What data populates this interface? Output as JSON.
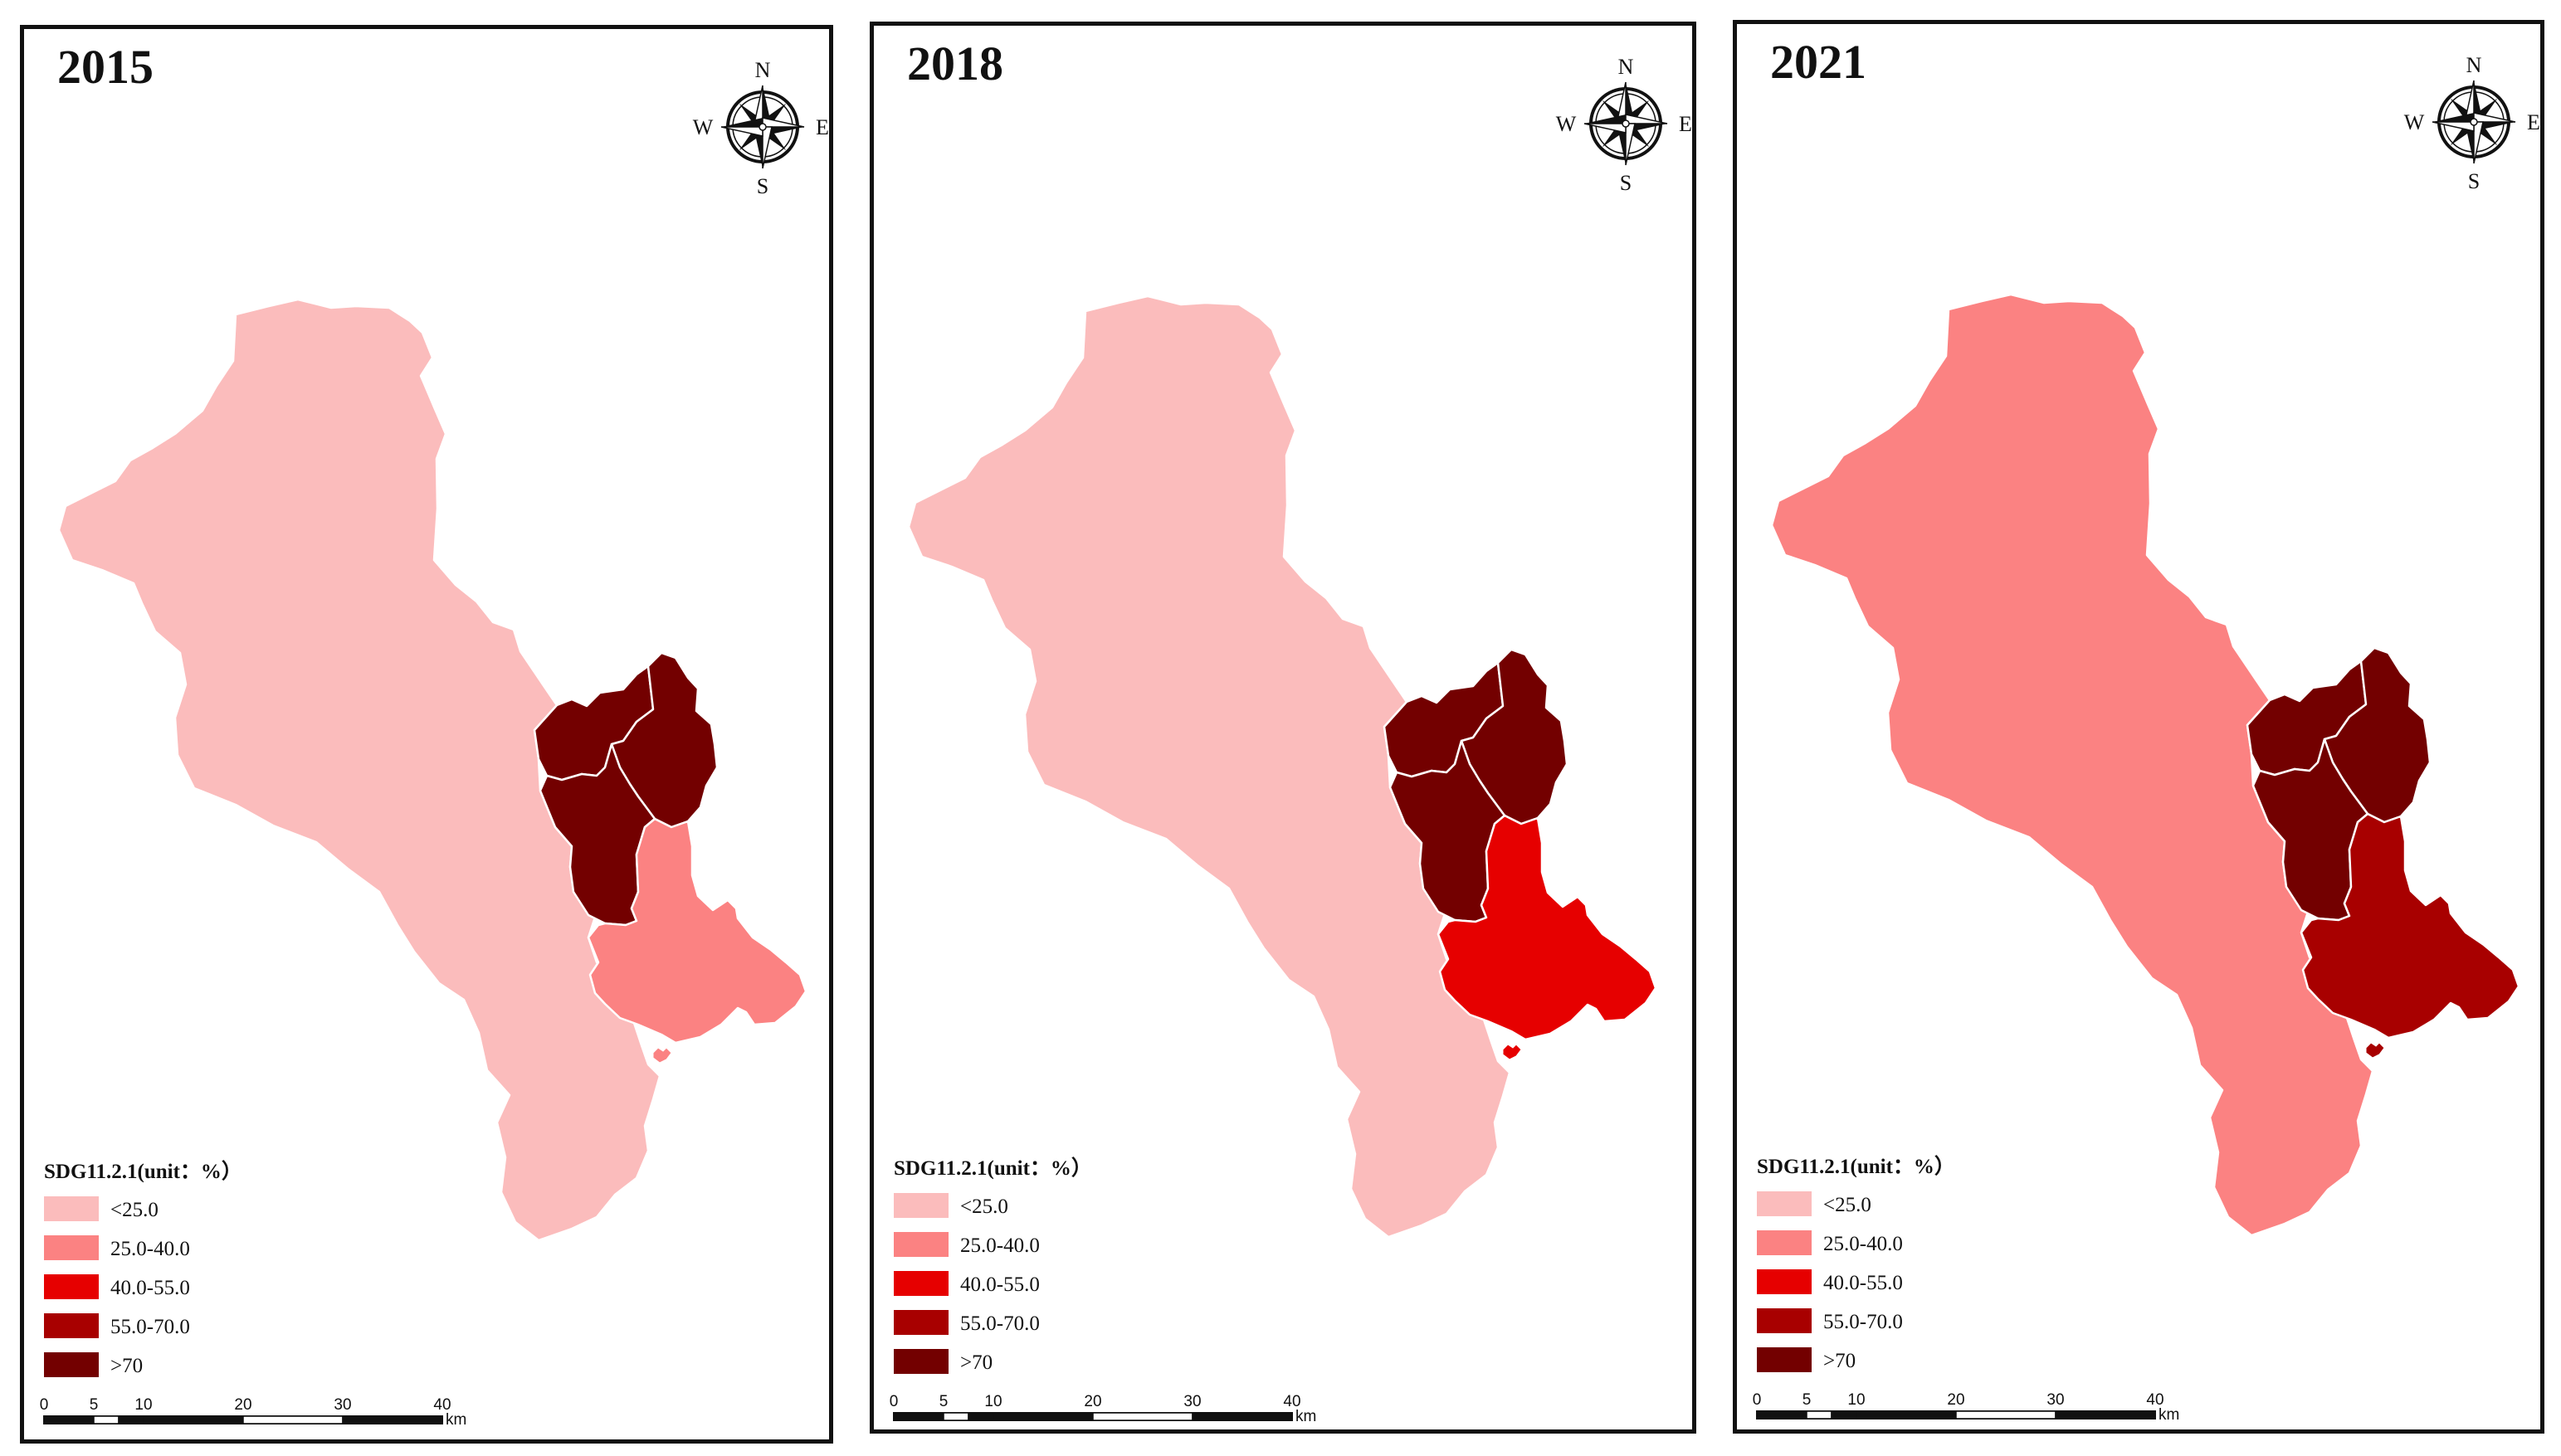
{
  "panels": [
    {
      "year": "2015",
      "fills": {
        "main": "<25.0",
        "north_w": ">70",
        "north_e": ">70",
        "west_mid": ">70",
        "south_e": "25.0-40.0"
      }
    },
    {
      "year": "2018",
      "fills": {
        "main": "<25.0",
        "north_w": ">70",
        "north_e": ">70",
        "west_mid": ">70",
        "south_e": "40.0-55.0"
      }
    },
    {
      "year": "2021",
      "fills": {
        "main": "25.0-40.0",
        "north_w": ">70",
        "north_e": ">70",
        "west_mid": ">70",
        "south_e": "55.0-70.0"
      }
    }
  ],
  "compass": {
    "n": "N",
    "s": "S",
    "e": "E",
    "w": "W"
  },
  "legend": {
    "title": "SDG11.2.1(unit：%）",
    "classes": [
      {
        "label": "<25.0",
        "color": "#fbbcbc"
      },
      {
        "label": "25.0-40.0",
        "color": "#fb8282"
      },
      {
        "label": "40.0-55.0",
        "color": "#e60000"
      },
      {
        "label": "55.0-70.0",
        "color": "#a80000"
      },
      {
        "label": ">70",
        "color": "#730000"
      }
    ]
  },
  "scale_bar": {
    "ticks": [
      "0",
      "5",
      "10",
      "20",
      "30",
      "40"
    ],
    "unit": "km"
  }
}
